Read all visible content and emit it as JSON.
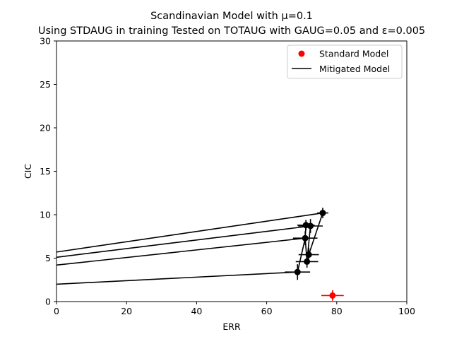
{
  "chart_data": {
    "type": "scatter",
    "title": "Scandinavian Model with μ=0.1",
    "subtitle": "Using STDAUG in training Tested on TOTAUG with GAUG=0.05 and ε=0.005",
    "xlabel": "ERR",
    "ylabel": "CIC",
    "xlim": [
      0,
      100
    ],
    "ylim": [
      0,
      30
    ],
    "xticks": [
      0,
      20,
      40,
      60,
      80,
      100
    ],
    "yticks": [
      0,
      5,
      10,
      15,
      20,
      25,
      30
    ],
    "grid": false,
    "legend_position": "top-right",
    "legend": [
      {
        "label": "Standard Model",
        "marker": "dot",
        "color": "#ff0000"
      },
      {
        "label": "Mitigated Model",
        "marker": "line",
        "color": "#000000"
      }
    ],
    "series": [
      {
        "name": "Standard Model",
        "color": "#ff0000",
        "points": [
          {
            "x": 78.8,
            "y": 0.7,
            "xerr": 3.2,
            "yerr": 0.6
          }
        ]
      },
      {
        "name": "Mitigated Model",
        "color": "#000000",
        "points": [
          {
            "x": 68.8,
            "y": 3.4,
            "xerr": 3.6,
            "yerr": 0.9
          },
          {
            "x": 71.5,
            "y": 4.6,
            "xerr": 3.2,
            "yerr": 0.7
          },
          {
            "x": 72.0,
            "y": 5.4,
            "xerr": 2.9,
            "yerr": 0.8
          },
          {
            "x": 71.0,
            "y": 7.3,
            "xerr": 3.5,
            "yerr": 0.8
          },
          {
            "x": 71.2,
            "y": 8.8,
            "xerr": 2.5,
            "yerr": 0.6
          },
          {
            "x": 72.5,
            "y": 8.7,
            "xerr": 3.5,
            "yerr": 0.8
          },
          {
            "x": 76.0,
            "y": 10.2,
            "xerr": 1.6,
            "yerr": 0.6
          }
        ],
        "lines": [
          {
            "from": [
              0,
              2.0
            ],
            "to": [
              68.8,
              3.4
            ]
          },
          {
            "from": [
              0,
              4.2
            ],
            "to": [
              71.0,
              7.3
            ]
          },
          {
            "from": [
              0,
              5.1
            ],
            "to": [
              72.5,
              8.7
            ]
          },
          {
            "from": [
              0,
              5.7
            ],
            "to": [
              76.0,
              10.2
            ]
          },
          {
            "from": [
              68.8,
              3.4
            ],
            "to": [
              71.0,
              7.3
            ]
          },
          {
            "from": [
              71.0,
              7.3
            ],
            "to": [
              71.2,
              8.8
            ]
          },
          {
            "from": [
              71.0,
              7.3
            ],
            "to": [
              71.5,
              4.6
            ]
          },
          {
            "from": [
              71.5,
              4.6
            ],
            "to": [
              72.5,
              8.7
            ]
          },
          {
            "from": [
              72.0,
              5.4
            ],
            "to": [
              76.0,
              10.2
            ]
          }
        ]
      }
    ]
  }
}
